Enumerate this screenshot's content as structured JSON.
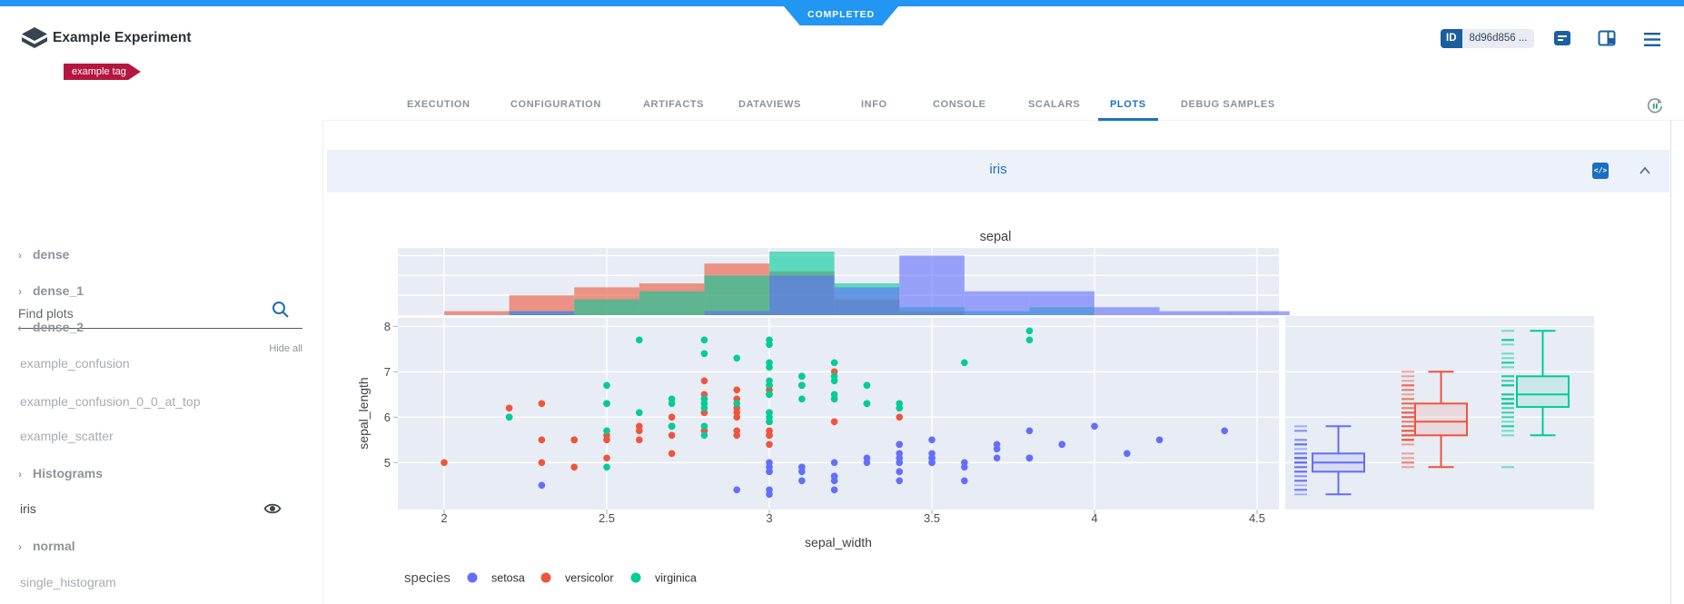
{
  "app": {
    "status_badge": "COMPLETED",
    "title": "Example Experiment",
    "tag": "example tag",
    "id_label": "ID",
    "id_value": "8d96d856 ...",
    "colors": {
      "accent_blue": "#2196f3",
      "tag_red": "#b5163f",
      "icon_blue": "#1b5fa0",
      "tab_active": "#1a73c0",
      "id_key_bg": "#1b5e9e"
    }
  },
  "tabs": {
    "items": [
      {
        "label": "EXECUTION",
        "active": false
      },
      {
        "label": "CONFIGURATION",
        "active": false
      },
      {
        "label": "ARTIFACTS",
        "active": false
      },
      {
        "label": "DATAVIEWS",
        "active": false
      },
      {
        "label": "INFO",
        "active": false
      },
      {
        "label": "CONSOLE",
        "active": false
      },
      {
        "label": "SCALARS",
        "active": false
      },
      {
        "label": "PLOTS",
        "active": true
      },
      {
        "label": "DEBUG SAMPLES",
        "active": false
      }
    ]
  },
  "sidebar": {
    "search_placeholder": "Find plots",
    "hide_all": "Hide all",
    "items": [
      {
        "label": "dense",
        "group": true,
        "active": false,
        "eye": false
      },
      {
        "label": "dense_1",
        "group": true,
        "active": false,
        "eye": false
      },
      {
        "label": "dense_2",
        "group": true,
        "active": false,
        "eye": false
      },
      {
        "label": "example_confusion",
        "group": false,
        "active": false,
        "eye": false
      },
      {
        "label": "example_confusion_0_0_at_top",
        "group": false,
        "active": false,
        "eye": false
      },
      {
        "label": "example_scatter",
        "group": false,
        "active": false,
        "eye": false
      },
      {
        "label": "Histograms",
        "group": true,
        "active": false,
        "eye": false
      },
      {
        "label": "iris",
        "group": false,
        "active": true,
        "eye": true
      },
      {
        "label": "normal",
        "group": true,
        "active": false,
        "eye": false
      },
      {
        "label": "single_histogram",
        "group": false,
        "active": false,
        "eye": false
      }
    ]
  },
  "panel": {
    "title": "iris",
    "code_icon": "</>"
  },
  "chart_data": {
    "type": "scatter",
    "title": "sepal",
    "xlabel": "sepal_width",
    "ylabel": "sepal_length",
    "legend_title": "species",
    "x_ticks": [
      2,
      2.5,
      3,
      3.5,
      4,
      4.5
    ],
    "y_ticks": [
      5,
      6,
      7,
      8
    ],
    "x_range": [
      1.86,
      4.57
    ],
    "y_range": [
      3.97,
      8.18
    ],
    "plot_bg": "#e7ecf5",
    "grid_color": "#ffffff",
    "marginal_x": "histogram",
    "marginal_box": true,
    "histogram_bins": {
      "start": 2.0,
      "size": 0.2
    },
    "series": [
      {
        "name": "setosa",
        "color": "#636efa",
        "sepal_width": [
          3.5,
          3.0,
          3.2,
          3.1,
          3.6,
          3.9,
          3.4,
          3.4,
          2.9,
          3.1,
          3.7,
          3.4,
          3.0,
          3.0,
          4.0,
          4.4,
          3.9,
          3.5,
          3.8,
          3.8,
          3.4,
          3.7,
          3.6,
          3.3,
          3.4,
          3.0,
          3.4,
          3.5,
          3.4,
          3.2,
          3.1,
          3.4,
          4.1,
          4.2,
          3.1,
          3.2,
          3.5,
          3.6,
          3.0,
          3.4,
          3.5,
          2.3,
          3.2,
          3.5,
          3.8,
          3.0,
          3.8,
          3.2,
          3.7,
          3.3
        ],
        "sepal_length": [
          5.1,
          4.9,
          4.7,
          4.6,
          5.0,
          5.4,
          4.6,
          5.0,
          4.4,
          4.9,
          5.4,
          4.8,
          4.8,
          4.3,
          5.8,
          5.7,
          5.4,
          5.1,
          5.7,
          5.1,
          5.4,
          5.1,
          4.6,
          5.1,
          4.8,
          5.0,
          5.0,
          5.2,
          5.2,
          4.7,
          4.8,
          5.4,
          5.2,
          5.5,
          4.9,
          5.0,
          5.5,
          4.9,
          4.4,
          5.1,
          5.0,
          4.5,
          4.4,
          5.0,
          5.1,
          4.8,
          5.1,
          4.6,
          5.3,
          5.0
        ]
      },
      {
        "name": "versicolor",
        "color": "#ef553b",
        "sepal_width": [
          3.2,
          3.2,
          3.1,
          2.3,
          2.8,
          2.8,
          3.3,
          2.4,
          2.9,
          2.7,
          2.0,
          3.0,
          2.2,
          2.9,
          2.9,
          3.1,
          3.0,
          2.7,
          2.2,
          2.5,
          3.2,
          2.8,
          2.5,
          2.8,
          2.9,
          3.0,
          2.8,
          3.0,
          2.9,
          2.6,
          2.4,
          2.4,
          2.7,
          2.7,
          3.0,
          3.4,
          3.1,
          2.3,
          3.0,
          2.5,
          2.6,
          3.0,
          2.6,
          2.3,
          2.7,
          3.0,
          2.9,
          2.9,
          2.5,
          2.8
        ],
        "sepal_length": [
          7.0,
          6.4,
          6.9,
          5.5,
          6.5,
          5.7,
          6.3,
          4.9,
          6.6,
          5.2,
          5.0,
          5.9,
          6.0,
          6.1,
          5.6,
          6.7,
          5.6,
          5.8,
          6.2,
          5.6,
          5.9,
          6.1,
          6.3,
          6.1,
          6.4,
          6.6,
          6.8,
          6.7,
          6.0,
          5.7,
          5.5,
          5.5,
          5.8,
          6.0,
          5.4,
          6.0,
          6.7,
          6.3,
          5.6,
          5.5,
          5.5,
          6.1,
          5.8,
          5.0,
          5.6,
          5.7,
          5.7,
          6.2,
          5.1,
          5.7
        ]
      },
      {
        "name": "virginica",
        "color": "#00cc96",
        "sepal_width": [
          3.3,
          2.7,
          3.0,
          2.9,
          3.0,
          3.0,
          2.5,
          2.9,
          2.5,
          3.6,
          3.2,
          2.7,
          3.0,
          2.5,
          2.8,
          3.2,
          3.0,
          3.8,
          2.6,
          2.2,
          3.2,
          2.8,
          2.8,
          2.7,
          3.3,
          3.2,
          2.8,
          3.0,
          2.8,
          3.0,
          2.8,
          3.8,
          2.8,
          2.8,
          2.6,
          3.0,
          3.4,
          3.1,
          3.0,
          3.1,
          3.1,
          3.1,
          2.7,
          3.2,
          3.3,
          3.0,
          2.5,
          3.0,
          3.4,
          3.0
        ],
        "sepal_length": [
          6.3,
          5.8,
          7.1,
          6.3,
          6.5,
          7.6,
          4.9,
          7.3,
          6.7,
          7.2,
          6.5,
          6.4,
          6.8,
          5.7,
          5.8,
          6.4,
          6.5,
          7.7,
          7.7,
          6.0,
          6.9,
          5.6,
          7.7,
          6.3,
          6.7,
          7.2,
          6.2,
          6.1,
          6.4,
          7.2,
          7.4,
          7.9,
          6.4,
          6.3,
          6.1,
          7.7,
          6.3,
          6.4,
          6.0,
          6.9,
          6.7,
          6.9,
          5.8,
          6.8,
          6.7,
          6.7,
          6.3,
          6.5,
          6.2,
          5.9
        ]
      }
    ]
  }
}
